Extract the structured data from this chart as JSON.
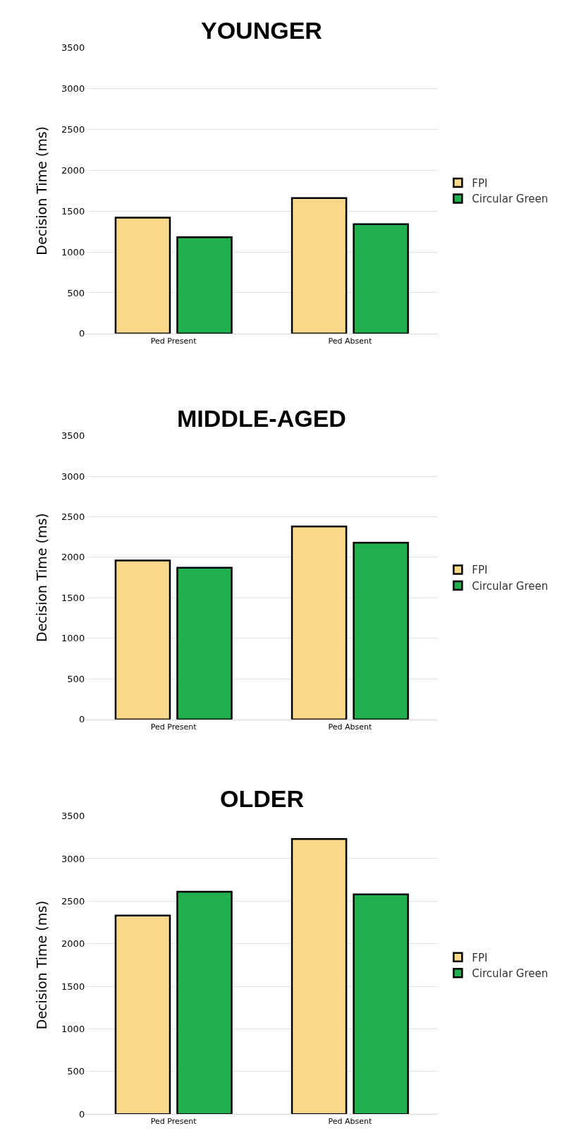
{
  "chart_data": [
    {
      "type": "bar",
      "title": "YOUNGER",
      "ylabel": "Decision Time (ms)",
      "categories": [
        "Ped Present",
        "Ped Absent"
      ],
      "series": [
        {
          "name": "FPI",
          "color": "#f9d889",
          "values": [
            1420,
            1660
          ]
        },
        {
          "name": "Circular Green",
          "color": "#21b04e",
          "values": [
            1180,
            1340
          ]
        }
      ],
      "ylim": [
        0,
        3500
      ],
      "yticks": [
        0,
        500,
        1000,
        1500,
        2000,
        2500,
        3000,
        3500
      ],
      "grid": "y",
      "legend": "right"
    },
    {
      "type": "bar",
      "title": "MIDDLE-AGED",
      "ylabel": "Decision Time (ms)",
      "categories": [
        "Ped Present",
        "Ped Absent"
      ],
      "series": [
        {
          "name": "FPI",
          "color": "#f9d889",
          "values": [
            1960,
            2380
          ]
        },
        {
          "name": "Circular Green",
          "color": "#21b04e",
          "values": [
            1870,
            2180
          ]
        }
      ],
      "ylim": [
        0,
        3500
      ],
      "yticks": [
        0,
        500,
        1000,
        1500,
        2000,
        2500,
        3000,
        3500
      ],
      "grid": "y",
      "legend": "right"
    },
    {
      "type": "bar",
      "title": "OLDER",
      "ylabel": "Decision Time (ms)",
      "categories": [
        "Ped Present",
        "Ped Absent"
      ],
      "series": [
        {
          "name": "FPI",
          "color": "#f9d889",
          "values": [
            2330,
            3230
          ]
        },
        {
          "name": "Circular Green",
          "color": "#21b04e",
          "values": [
            2610,
            2580
          ]
        }
      ],
      "ylim": [
        0,
        3500
      ],
      "yticks": [
        0,
        500,
        1000,
        1500,
        2000,
        2500,
        3000,
        3500
      ],
      "grid": "y",
      "legend": "right"
    }
  ]
}
